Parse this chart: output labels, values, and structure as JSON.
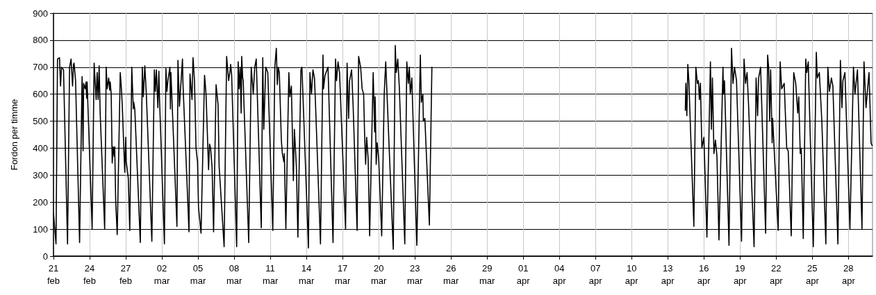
{
  "chart_data": {
    "type": "line",
    "ylabel": "Fordon per timme",
    "color": "#000000",
    "marker": "none",
    "line_style": "solid",
    "grid": true,
    "xlim": [
      "--02-21",
      "--04-30"
    ],
    "ylim": [
      0,
      900
    ],
    "yticks": [
      0,
      100,
      200,
      300,
      400,
      500,
      600,
      700,
      800,
      900
    ],
    "xticks": [
      {
        "value": "--02-21",
        "label": "21\nfeb"
      },
      {
        "value": "--02-24",
        "label": "24\nfeb"
      },
      {
        "value": "--02-27",
        "label": "27\nfeb"
      },
      {
        "value": "--03-02",
        "label": "02\nmar"
      },
      {
        "value": "--03-05",
        "label": "05\nmar"
      },
      {
        "value": "--03-08",
        "label": "08\nmar"
      },
      {
        "value": "--03-11",
        "label": "11\nmar"
      },
      {
        "value": "--03-14",
        "label": "14\nmar"
      },
      {
        "value": "--03-17",
        "label": "17\nmar"
      },
      {
        "value": "--03-20",
        "label": "20\nmar"
      },
      {
        "value": "--03-23",
        "label": "23\nmar"
      },
      {
        "value": "--03-26",
        "label": "26\nmar"
      },
      {
        "value": "--03-29",
        "label": "29\nmar"
      },
      {
        "value": "--04-01",
        "label": "01\napr"
      },
      {
        "value": "--04-04",
        "label": "04\napr"
      },
      {
        "value": "--04-07",
        "label": "07\napr"
      },
      {
        "value": "--04-10",
        "label": "10\napr"
      },
      {
        "value": "--04-13",
        "label": "13\napr"
      },
      {
        "value": "--04-16",
        "label": "16\napr"
      },
      {
        "value": "--04-19",
        "label": "19\napr"
      },
      {
        "value": "--04-22",
        "label": "22\napr"
      },
      {
        "value": "--04-25",
        "label": "25\napr"
      },
      {
        "value": "--04-28",
        "label": "28\napr"
      }
    ],
    "x": [
      "--02-21T00:00",
      "--02-21T05:00",
      "--02-21T08:00",
      "--02-21T12:00",
      "--02-21T14:00",
      "--02-21T16:00",
      "--02-21T20:00",
      "--02-22T04:00",
      "--02-22T08:00",
      "--02-22T11:00",
      "--02-22T14:00",
      "--02-22T16:00",
      "--02-22T17:00",
      "--02-22T20:00",
      "--02-23T04:00",
      "--02-23T09:00",
      "--02-23T11:00",
      "--02-23T12:00",
      "--02-23T15:00",
      "--02-23T17:00",
      "--02-23T18:00",
      "--02-23T19:00",
      "--02-24T05:00",
      "--02-24T09:00",
      "--02-24T13:00",
      "--02-24T15:00",
      "--02-24T17:00",
      "--02-24T19:00",
      "--02-24T21:00",
      "--02-25T06:00",
      "--02-25T09:00",
      "--02-25T11:00",
      "--02-25T14:00",
      "--02-25T16:00",
      "--02-25T17:00",
      "--02-25T19:00",
      "--02-25T21:00",
      "--02-25T23:00",
      "--02-26T01:00",
      "--02-26T02:00",
      "--02-26T04:00",
      "--02-26T07:00",
      "--02-26T13:00",
      "--02-26T15:00",
      "--02-26T17:00",
      "--02-26T22:00",
      "--02-27T00:00",
      "--02-27T01:00",
      "--02-27T05:00",
      "--02-27T08:00",
      "--02-27T12:00",
      "--02-27T15:00",
      "--02-27T16:00",
      "--02-27T18:00",
      "--02-28T05:00",
      "--02-28T09:00",
      "--02-28T11:00",
      "--02-28T14:00",
      "--02-28T17:00",
      "--03-01T04:00",
      "--03-01T09:00",
      "--03-01T11:00",
      "--03-01T13:00",
      "--03-01T16:00",
      "--03-01T18:00",
      "--03-01T19:00",
      "--03-02T05:00",
      "--03-02T08:00",
      "--03-02T10:00",
      "--03-02T12:00",
      "--03-02T16:00",
      "--03-02T17:00",
      "--03-02T18:00",
      "--03-03T06:00",
      "--03-03T08:00",
      "--03-03T11:00",
      "--03-03T17:00",
      "--03-03T18:00",
      "--03-04T06:00",
      "--03-04T08:00",
      "--03-04T12:00",
      "--03-04T14:00",
      "--03-04T17:00",
      "--03-04T20:00",
      "--03-04T23:00",
      "--03-05T01:00",
      "--03-05T06:00",
      "--03-05T13:00",
      "--03-05T16:00",
      "--03-05T21:00",
      "--03-05T23:00",
      "--03-06T01:00",
      "--03-06T04:00",
      "--03-06T07:00",
      "--03-06T12:00",
      "--03-06T16:00",
      "--03-06T18:00",
      "--03-07T04:00",
      "--03-07T09:00",
      "--03-07T13:00",
      "--03-07T16:00",
      "--03-07T17:00",
      "--03-07T19:00",
      "--03-08T05:00",
      "--03-08T08:00",
      "--03-08T10:00",
      "--03-08T12:00",
      "--03-08T14:00",
      "--03-08T15:00",
      "--03-08T17:00",
      "--03-08T18:00",
      "--03-09T05:00",
      "--03-09T10:00",
      "--03-09T14:00",
      "--03-09T17:00",
      "--03-09T20:00",
      "--03-10T06:00",
      "--03-10T09:00",
      "--03-10T11:00",
      "--03-10T15:00",
      "--03-10T19:00",
      "--03-11T05:00",
      "--03-11T09:00",
      "--03-11T12:00",
      "--03-11T14:00",
      "--03-11T16:00",
      "--03-11T18:00",
      "--03-11T22:00",
      "--03-12T00:00",
      "--03-12T03:00",
      "--03-12T04:00",
      "--03-12T07:00",
      "--03-12T13:00",
      "--03-12T15:00",
      "--03-12T18:00",
      "--03-12T22:00",
      "--03-13T00:00",
      "--03-13T04:00",
      "--03-13T07:00",
      "--03-13T13:00",
      "--03-13T15:00",
      "--03-13T17:00",
      "--03-14T04:00",
      "--03-14T07:00",
      "--03-14T10:00",
      "--03-14T13:00",
      "--03-14T16:00",
      "--03-14T18:00",
      "--03-15T04:00",
      "--03-15T09:00",
      "--03-15T10:00",
      "--03-15T13:00",
      "--03-15T19:00",
      "--03-16T05:00",
      "--03-16T10:00",
      "--03-16T12:00",
      "--03-16T15:00",
      "--03-16T18:00",
      "--03-17T06:00",
      "--03-17T09:00",
      "--03-17T12:00",
      "--03-17T14:00",
      "--03-17T18:00",
      "--03-17T21:00",
      "--03-18T05:00",
      "--03-18T08:00",
      "--03-18T12:00",
      "--03-18T15:00",
      "--03-18T18:00",
      "--03-18T20:00",
      "--03-18T22:00",
      "--03-19T00:00",
      "--03-19T03:00",
      "--03-19T06:00",
      "--03-19T13:00",
      "--03-19T16:00",
      "--03-19T17:00",
      "--03-19T19:00",
      "--03-19T21:00",
      "--03-20T00:00",
      "--03-20T06:00",
      "--03-20T11:00",
      "--03-20T14:00",
      "--03-21T05:00",
      "--03-21T09:00",
      "--03-21T11:00",
      "--03-21T14:00",
      "--03-21T17:00",
      "--03-22T04:00",
      "--03-22T08:00",
      "--03-22T11:00",
      "--03-22T13:00",
      "--03-22T15:00",
      "--03-22T18:00",
      "--03-23T04:00",
      "--03-23T11:00",
      "--03-23T13:00",
      "--03-23T16:00",
      "--03-23T17:00",
      "--03-23T20:00",
      "--03-24T05:00",
      "--03-24T10:00",
      "--04-01T00:00",
      "--04-14T11:00",
      "--04-14T12:00",
      "--04-14T14:00",
      "--04-14T16:00",
      "--04-14T18:00",
      "--04-15T04:00",
      "--04-15T08:00",
      "--04-15T11:00",
      "--04-15T13:00",
      "--04-15T15:00",
      "--04-15T17:00",
      "--04-15T20:00",
      "--04-16T00:00",
      "--04-16T01:00",
      "--04-16T06:00",
      "--04-16T13:00",
      "--04-16T15:00",
      "--04-16T17:00",
      "--04-16T20:00",
      "--04-16T23:00",
      "--04-17T02:00",
      "--04-17T06:00",
      "--04-17T14:00",
      "--04-17T15:00",
      "--04-17T17:00",
      "--04-18T02:00",
      "--04-18T07:00",
      "--04-18T10:00",
      "--04-18T13:00",
      "--04-18T17:00",
      "--04-19T03:00",
      "--04-19T08:00",
      "--04-19T11:00",
      "--04-19T14:00",
      "--04-19T17:00",
      "--04-20T04:00",
      "--04-20T08:00",
      "--04-20T11:00",
      "--04-20T13:00",
      "--04-20T17:00",
      "--04-21T03:00",
      "--04-21T07:00",
      "--04-21T09:00",
      "--04-21T11:00",
      "--04-21T13:00",
      "--04-21T16:00",
      "--04-21T17:00",
      "--04-22T04:00",
      "--04-22T08:00",
      "--04-22T11:00",
      "--04-22T16:00",
      "--04-22T21:00",
      "--04-23T00:00",
      "--04-23T06:00",
      "--04-23T11:00",
      "--04-23T15:00",
      "--04-23T19:00",
      "--04-23T21:00",
      "--04-24T00:00",
      "--04-24T02:00",
      "--04-24T06:00",
      "--04-24T11:00",
      "--04-24T13:00",
      "--04-24T16:00",
      "--04-24T17:00",
      "--04-25T02:00",
      "--04-25T08:00",
      "--04-25T10:00",
      "--04-25T14:00",
      "--04-25T19:00",
      "--04-26T03:00",
      "--04-26T07:00",
      "--04-26T10:00",
      "--04-26T14:00",
      "--04-26T17:00",
      "--04-27T03:00",
      "--04-27T08:00",
      "--04-27T11:00",
      "--04-27T13:00",
      "--04-27T17:00",
      "--04-28T03:00",
      "--04-28T10:00",
      "--04-28T13:00",
      "--04-28T18:00",
      "--04-29T03:00",
      "--04-29T07:00",
      "--04-29T11:00",
      "--04-29T17:00",
      "--04-29T19:00",
      "--04-29T21:00",
      "--04-29T23:00"
    ],
    "values": [
      160,
      45,
      730,
      735,
      630,
      700,
      690,
      45,
      700,
      730,
      630,
      710,
      715,
      650,
      50,
      665,
      390,
      640,
      620,
      645,
      585,
      645,
      100,
      715,
      580,
      680,
      580,
      705,
      530,
      100,
      700,
      620,
      660,
      615,
      645,
      600,
      345,
      405,
      370,
      405,
      200,
      80,
      680,
      630,
      560,
      310,
      440,
      350,
      290,
      95,
      700,
      545,
      570,
      545,
      50,
      700,
      590,
      705,
      600,
      55,
      690,
      610,
      690,
      550,
      685,
      600,
      45,
      695,
      610,
      650,
      700,
      545,
      680,
      110,
      725,
      555,
      730,
      640,
      90,
      675,
      580,
      735,
      650,
      400,
      350,
      180,
      85,
      670,
      600,
      320,
      415,
      400,
      330,
      90,
      635,
      560,
      335,
      35,
      740,
      650,
      690,
      710,
      670,
      35,
      720,
      620,
      700,
      530,
      740,
      660,
      650,
      50,
      700,
      600,
      700,
      730,
      105,
      735,
      470,
      700,
      680,
      95,
      700,
      770,
      635,
      700,
      680,
      430,
      380,
      350,
      380,
      100,
      680,
      590,
      630,
      280,
      470,
      330,
      70,
      690,
      700,
      600,
      30,
      680,
      600,
      690,
      660,
      570,
      45,
      745,
      620,
      670,
      700,
      50,
      730,
      650,
      720,
      680,
      100,
      715,
      510,
      650,
      690,
      560,
      95,
      740,
      700,
      620,
      600,
      445,
      340,
      440,
      360,
      75,
      680,
      460,
      590,
      340,
      420,
      360,
      75,
      600,
      720,
      25,
      780,
      680,
      730,
      630,
      45,
      720,
      640,
      700,
      600,
      660,
      40,
      745,
      570,
      600,
      500,
      510,
      115,
      700,
      null,
      540,
      640,
      520,
      710,
      650,
      110,
      700,
      640,
      650,
      580,
      640,
      400,
      440,
      380,
      70,
      720,
      470,
      660,
      380,
      430,
      370,
      60,
      700,
      600,
      650,
      40,
      770,
      640,
      700,
      650,
      55,
      730,
      640,
      680,
      560,
      35,
      660,
      520,
      660,
      700,
      85,
      745,
      700,
      500,
      690,
      420,
      510,
      95,
      720,
      620,
      640,
      400,
      390,
      75,
      680,
      640,
      530,
      590,
      380,
      400,
      65,
      730,
      680,
      720,
      640,
      35,
      755,
      660,
      680,
      500,
      45,
      700,
      610,
      660,
      630,
      45,
      725,
      550,
      650,
      680,
      100,
      700,
      600,
      690,
      100,
      720,
      550,
      680,
      560,
      420,
      410
    ]
  }
}
